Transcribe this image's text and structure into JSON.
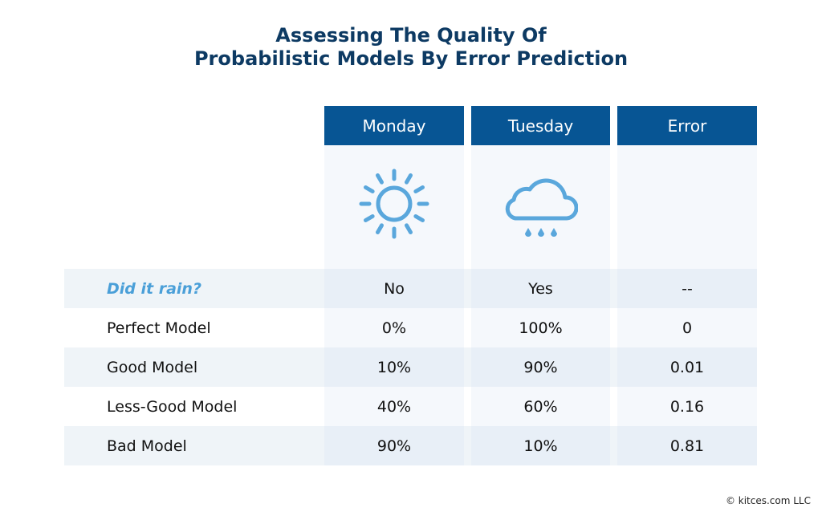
{
  "title_line1": "Assessing The Quality Of",
  "title_line2": "Probabilistic Models By Error Prediction",
  "colors": {
    "header": "#075594",
    "title": "#0d3a63",
    "accent": "#4a9fd8",
    "icon": "#5aa7dc"
  },
  "chart_data": {
    "type": "table",
    "columns": [
      "Monday",
      "Tuesday",
      "Error"
    ],
    "icons": [
      "sun-icon",
      "rain-cloud-icon",
      ""
    ],
    "rows": [
      {
        "label": "Did it rain?",
        "values": [
          "No",
          "Yes",
          "--"
        ]
      },
      {
        "label": "Perfect Model",
        "values": [
          "0%",
          "100%",
          "0"
        ]
      },
      {
        "label": "Good Model",
        "values": [
          "10%",
          "90%",
          "0.01"
        ]
      },
      {
        "label": "Less-Good Model",
        "values": [
          "40%",
          "60%",
          "0.16"
        ]
      },
      {
        "label": "Bad Model",
        "values": [
          "90%",
          "10%",
          "0.81"
        ]
      }
    ]
  },
  "copyright": "© kitces.com LLC"
}
